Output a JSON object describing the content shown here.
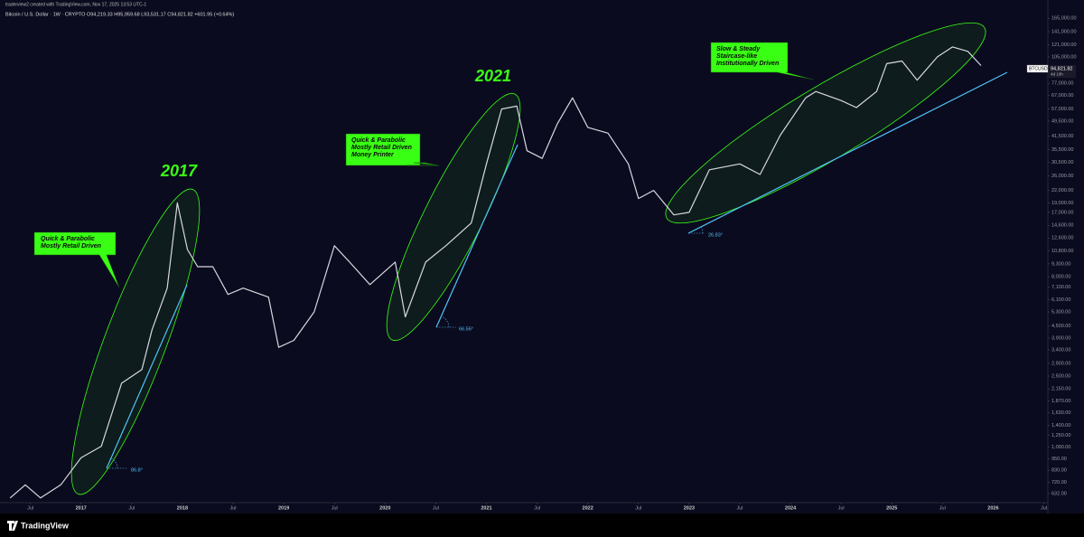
{
  "header": {
    "credit": "traderview2 created with TradingView.com, Nov 17, 2025 13:53 UTC-1",
    "symbol_line": "Bitcoin / U.S. Dollar · 1W · CRYPTO   O94,219.33  H95,959.68  L93,531.17  C94,821.82  +601.95 (+0.64%)"
  },
  "chart_data": {
    "type": "line",
    "log_scale": true,
    "grid": false,
    "color": "#d8d8e0",
    "x": [
      2016.3,
      2016.45,
      2016.6,
      2016.8,
      2017.0,
      2017.2,
      2017.4,
      2017.6,
      2017.7,
      2017.85,
      2017.95,
      2018.05,
      2018.15,
      2018.3,
      2018.45,
      2018.6,
      2018.85,
      2018.95,
      2019.1,
      2019.3,
      2019.5,
      2019.65,
      2019.85,
      2020.1,
      2020.2,
      2020.4,
      2020.6,
      2020.85,
      2021.0,
      2021.15,
      2021.3,
      2021.4,
      2021.55,
      2021.7,
      2021.85,
      2022.0,
      2022.2,
      2022.4,
      2022.5,
      2022.65,
      2022.85,
      2023.0,
      2023.2,
      2023.5,
      2023.7,
      2023.9,
      2024.15,
      2024.25,
      2024.5,
      2024.65,
      2024.85,
      2024.95,
      2025.1,
      2025.25,
      2025.45,
      2025.6,
      2025.75,
      2025.88
    ],
    "values": [
      600,
      700,
      600,
      700,
      960,
      1100,
      2300,
      2700,
      4300,
      7000,
      19000,
      11000,
      9000,
      9000,
      6500,
      7000,
      6300,
      3500,
      3800,
      5300,
      11500,
      9500,
      7300,
      9500,
      5000,
      9500,
      11500,
      15000,
      30000,
      57000,
      59000,
      35000,
      32000,
      48000,
      65000,
      46000,
      43000,
      30000,
      20000,
      22000,
      16500,
      17000,
      28000,
      30000,
      26500,
      42000,
      65000,
      70000,
      63000,
      58000,
      70000,
      97000,
      100000,
      80000,
      105000,
      118000,
      112000,
      94821.82
    ],
    "xlim": [
      2016.2,
      2026.54
    ],
    "xticks": [
      {
        "value": 2016.5,
        "label": "Jul"
      },
      {
        "value": 2017,
        "label": "2017"
      },
      {
        "value": 2017.5,
        "label": "Jul"
      },
      {
        "value": 2018,
        "label": "2018"
      },
      {
        "value": 2018.5,
        "label": "Jul"
      },
      {
        "value": 2019,
        "label": "2019"
      },
      {
        "value": 2019.5,
        "label": "Jul"
      },
      {
        "value": 2020,
        "label": "2020"
      },
      {
        "value": 2020.5,
        "label": "Jul"
      },
      {
        "value": 2021,
        "label": "2021"
      },
      {
        "value": 2021.5,
        "label": "Jul"
      },
      {
        "value": 2022,
        "label": "2022"
      },
      {
        "value": 2022.5,
        "label": "Jul"
      },
      {
        "value": 2023,
        "label": "2023"
      },
      {
        "value": 2023.5,
        "label": "Jul"
      },
      {
        "value": 2024,
        "label": "2024"
      },
      {
        "value": 2024.5,
        "label": "Jul"
      },
      {
        "value": 2025,
        "label": "2025"
      },
      {
        "value": 2025.5,
        "label": "Jul"
      },
      {
        "value": 2026,
        "label": "2026"
      },
      {
        "value": 2026.5,
        "label": "Jul"
      }
    ],
    "ylim": [
      568,
      180000
    ],
    "yticks": [
      {
        "value": 165000,
        "label": "165,000.00"
      },
      {
        "value": 141000,
        "label": "141,000.00"
      },
      {
        "value": 121000,
        "label": "121,000.00"
      },
      {
        "value": 105000,
        "label": "105,000.00"
      },
      {
        "value": 77000,
        "label": "77,000.00"
      },
      {
        "value": 67000,
        "label": "67,000.00"
      },
      {
        "value": 57000,
        "label": "57,000.00"
      },
      {
        "value": 49500,
        "label": "49,500.00"
      },
      {
        "value": 41500,
        "label": "41,500.00"
      },
      {
        "value": 35500,
        "label": "35,500.00"
      },
      {
        "value": 30500,
        "label": "30,500.00"
      },
      {
        "value": 26000,
        "label": "26,000.00"
      },
      {
        "value": 22000,
        "label": "22,000.00"
      },
      {
        "value": 19000,
        "label": "19,000.00"
      },
      {
        "value": 17000,
        "label": "17,000.00"
      },
      {
        "value": 14600,
        "label": "14,600.00"
      },
      {
        "value": 12600,
        "label": "12,600.00"
      },
      {
        "value": 10800,
        "label": "10,800.00"
      },
      {
        "value": 9300,
        "label": "9,300.00"
      },
      {
        "value": 8000,
        "label": "8,000.00"
      },
      {
        "value": 7100,
        "label": "7,100.00"
      },
      {
        "value": 6100,
        "label": "6,100.00"
      },
      {
        "value": 5300,
        "label": "5,300.00"
      },
      {
        "value": 4500,
        "label": "4,500.00"
      },
      {
        "value": 3900,
        "label": "3,900.00"
      },
      {
        "value": 3400,
        "label": "3,400.00"
      },
      {
        "value": 2900,
        "label": "2,900.00"
      },
      {
        "value": 2500,
        "label": "2,500.00"
      },
      {
        "value": 2150,
        "label": "2,150.00"
      },
      {
        "value": 1870,
        "label": "1,870.00"
      },
      {
        "value": 1630,
        "label": "1,630.00"
      },
      {
        "value": 1400,
        "label": "1,400.00"
      },
      {
        "value": 1250,
        "label": "1,250.00"
      },
      {
        "value": 1090,
        "label": "1,090.00"
      },
      {
        "value": 950,
        "label": "950.00"
      },
      {
        "value": 830,
        "label": "830.00"
      },
      {
        "value": 720,
        "label": "720.00"
      },
      {
        "value": 632,
        "label": "632.00"
      }
    ],
    "annotations": {
      "year_2017": "2017",
      "year_2021": "2021",
      "callout_2017": [
        "Quick & Parabolic",
        "Mostly Retail Driven"
      ],
      "callout_2021": [
        "Quick & Parabolic",
        "Mostly Retail Driven",
        "Money Printer"
      ],
      "callout_now": [
        "Slow & Steady",
        "Staircase-like",
        "Institutionally Driven"
      ],
      "angle_2017": "86.8°",
      "angle_2021": "66.56°",
      "angle_now": "26.83°"
    },
    "last_label": {
      "symbol": "BTCUSD",
      "price": "94,821.82",
      "countdown": "4d 10h"
    }
  },
  "footer": {
    "brand": "TradingView"
  }
}
